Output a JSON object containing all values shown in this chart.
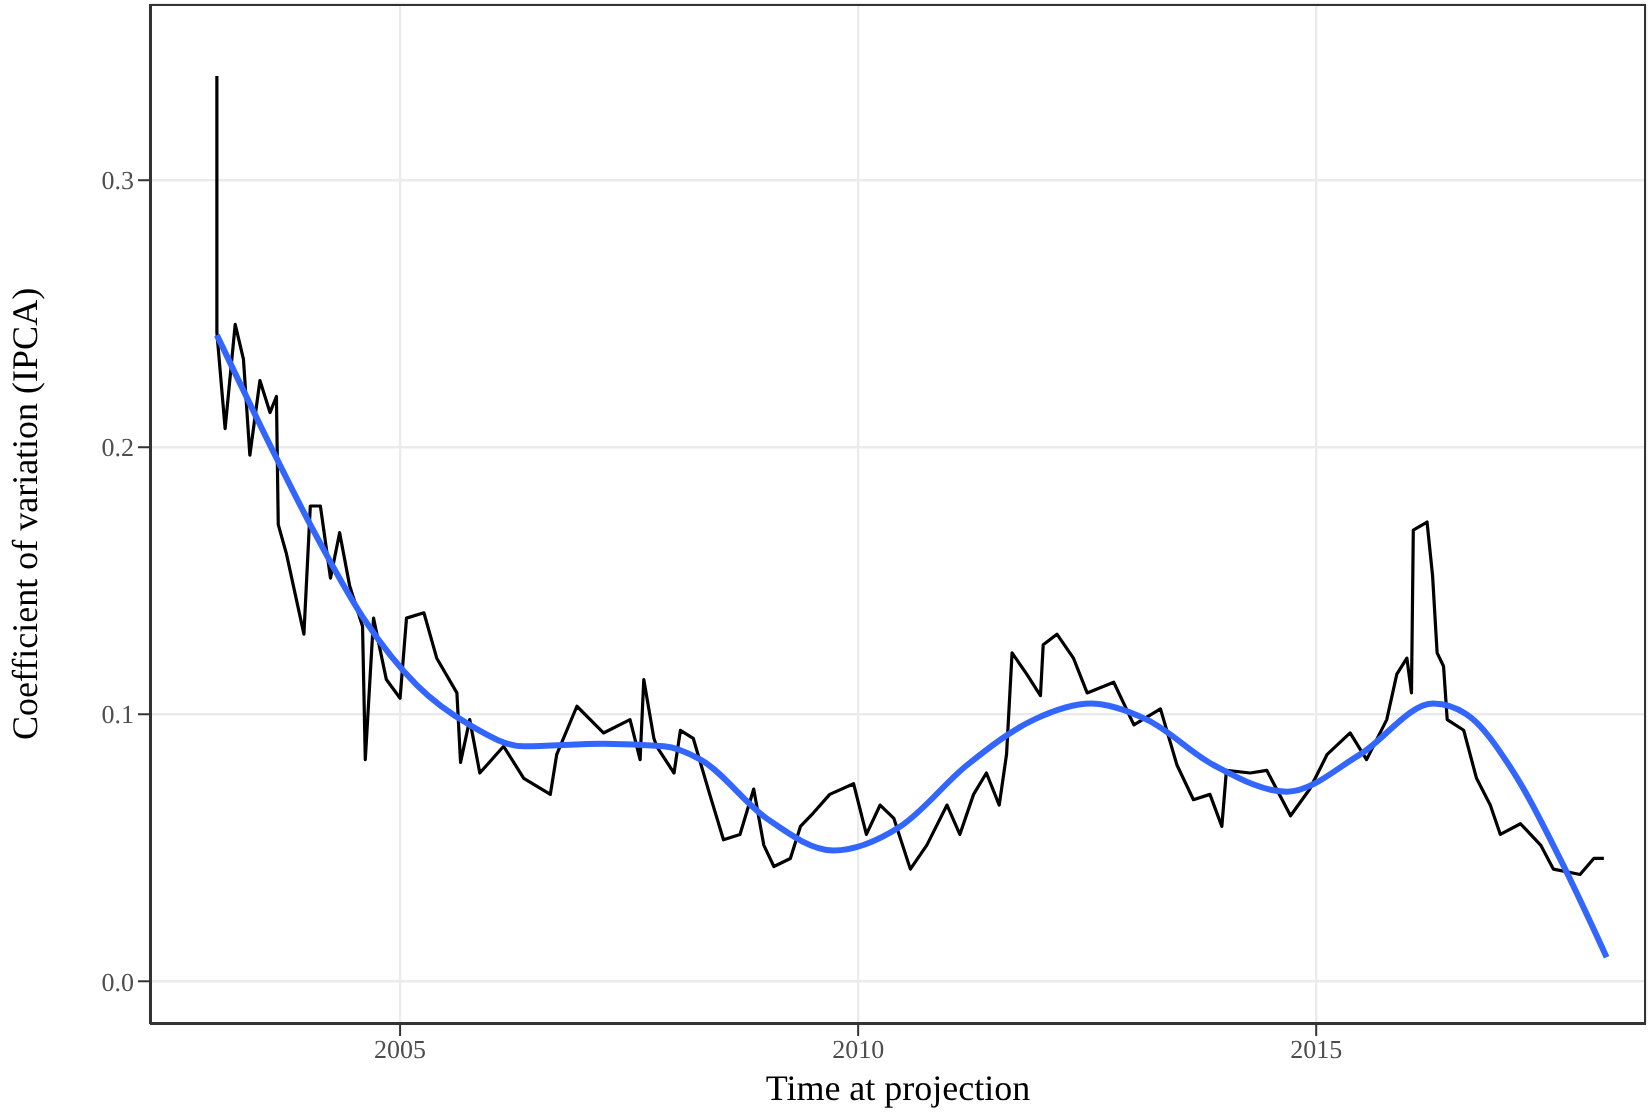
{
  "chart_data": {
    "type": "line",
    "xlabel": "Time at projection",
    "ylabel": "Coefficient of variation (IPCA)",
    "xlim": [
      2002.27,
      2018.6
    ],
    "ylim": [
      -0.016,
      0.366
    ],
    "xticks": [
      2005,
      2010,
      2015
    ],
    "yticks": [
      {
        "value": 0,
        "label": "0.0"
      },
      0.1,
      0.2,
      0.3
    ],
    "grid": true,
    "marker": "none",
    "series": [
      {
        "color": "#000000",
        "x": [
          2003.0,
          2003.0,
          2003.0,
          2003.09,
          2003.2,
          2003.29,
          2003.36,
          2003.47,
          2003.58,
          2003.65,
          2003.67,
          2003.76,
          2003.95,
          2004.02,
          2004.13,
          2004.24,
          2004.34,
          2004.45,
          2004.59,
          2004.62,
          2004.71,
          2004.85,
          2005.0,
          2005.07,
          2005.26,
          2005.4,
          2005.62,
          2005.66,
          2005.76,
          2005.87,
          2006.13,
          2006.35,
          2006.64,
          2006.71,
          2006.93,
          2007.22,
          2007.51,
          2007.62,
          2007.66,
          2007.77,
          2007.8,
          2007.99,
          2008.06,
          2008.2,
          2008.38,
          2008.53,
          2008.71,
          2008.86,
          2008.97,
          2009.08,
          2009.26,
          2009.37,
          2009.51,
          2009.69,
          2009.95,
          2010.09,
          2010.24,
          2010.39,
          2010.57,
          2010.75,
          2010.97,
          2011.11,
          2011.26,
          2011.4,
          2011.54,
          2011.62,
          2011.68,
          2011.84,
          2011.99,
          2012.02,
          2012.17,
          2012.35,
          2012.5,
          2012.79,
          2013.01,
          2013.3,
          2013.48,
          2013.66,
          2013.84,
          2013.97,
          2014.02,
          2014.28,
          2014.46,
          2014.72,
          2014.93,
          2015.12,
          2015.37,
          2015.55,
          2015.77,
          2015.88,
          2015.99,
          2016.04,
          2016.06,
          2016.21,
          2016.27,
          2016.32,
          2016.39,
          2016.43,
          2016.61,
          2016.75,
          2016.9,
          2017.01,
          2017.23,
          2017.45,
          2017.59,
          2017.88,
          2018.03,
          2018.14
        ],
        "values": [
          0.339,
          0.323,
          0.243,
          0.207,
          0.246,
          0.233,
          0.197,
          0.225,
          0.213,
          0.219,
          0.171,
          0.16,
          0.13,
          0.178,
          0.178,
          0.151,
          0.168,
          0.148,
          0.133,
          0.083,
          0.136,
          0.113,
          0.106,
          0.136,
          0.138,
          0.121,
          0.108,
          0.082,
          0.098,
          0.078,
          0.088,
          0.076,
          0.07,
          0.085,
          0.103,
          0.093,
          0.098,
          0.083,
          0.113,
          0.091,
          0.088,
          0.078,
          0.094,
          0.091,
          0.07,
          0.053,
          0.055,
          0.072,
          0.051,
          0.043,
          0.046,
          0.058,
          0.063,
          0.07,
          0.074,
          0.055,
          0.066,
          0.061,
          0.042,
          0.051,
          0.066,
          0.055,
          0.07,
          0.078,
          0.066,
          0.085,
          0.123,
          0.115,
          0.107,
          0.126,
          0.13,
          0.121,
          0.108,
          0.112,
          0.096,
          0.102,
          0.081,
          0.068,
          0.07,
          0.058,
          0.079,
          0.078,
          0.079,
          0.062,
          0.072,
          0.085,
          0.093,
          0.083,
          0.098,
          0.115,
          0.121,
          0.108,
          0.169,
          0.172,
          0.152,
          0.123,
          0.118,
          0.098,
          0.094,
          0.076,
          0.066,
          0.055,
          0.059,
          0.051,
          0.042,
          0.04,
          0.046,
          0.046
        ]
      },
      {
        "color": "#3366ff",
        "x": [
          2003.0,
          2003.65,
          2004.02,
          2004.6,
          2005.18,
          2005.76,
          2006.35,
          2007.22,
          2007.88,
          2008.28,
          2009.0,
          2009.73,
          2010.46,
          2011.19,
          2011.92,
          2012.54,
          2013.15,
          2013.88,
          2014.68,
          2015.48,
          2016.28,
          2016.64,
          2017.16,
          2017.66,
          2018.17
        ],
        "values": [
          0.242,
          0.196,
          0.171,
          0.136,
          0.111,
          0.096,
          0.088,
          0.089,
          0.088,
          0.083,
          0.061,
          0.049,
          0.058,
          0.081,
          0.098,
          0.104,
          0.098,
          0.081,
          0.071,
          0.085,
          0.104,
          0.1,
          0.078,
          0.046,
          0.009
        ]
      }
    ]
  }
}
